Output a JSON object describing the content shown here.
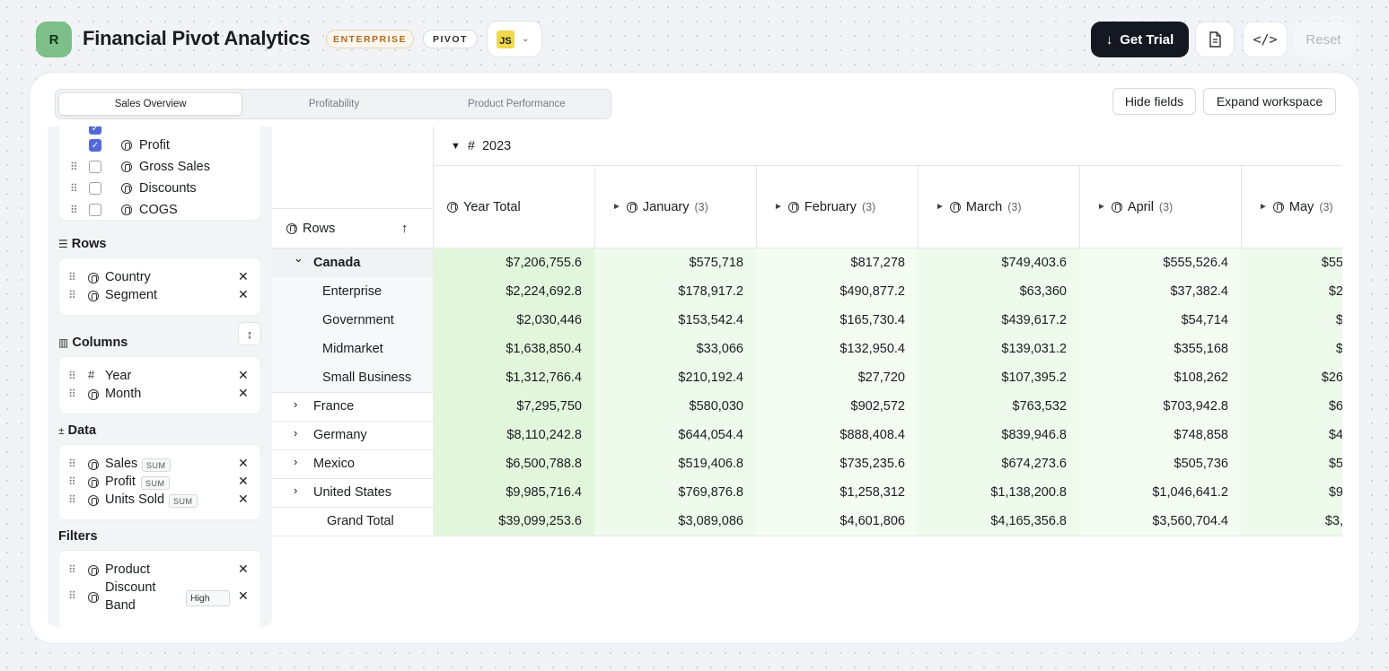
{
  "header": {
    "avatar_letter": "R",
    "title": "Financial Pivot Analytics",
    "badge_enterprise": "ENTERPRISE",
    "badge_pivot": "PIVOT",
    "language": "JS",
    "trial_label": "Get Trial",
    "reset_label": "Reset",
    "icons": [
      "download-icon",
      "document-icon",
      "code-icon",
      "chevron-down-icon"
    ]
  },
  "tabs": [
    {
      "label": "Sales Overview",
      "active": true
    },
    {
      "label": "Profitability",
      "active": false
    },
    {
      "label": "Product Performance",
      "active": false
    }
  ],
  "actions": {
    "hide_fields": "Hide fields",
    "expand_workspace": "Expand workspace"
  },
  "sidebar": {
    "fields": [
      {
        "label": "Profit",
        "checked": true
      },
      {
        "label": "Gross Sales",
        "checked": false
      },
      {
        "label": "Discounts",
        "checked": false
      },
      {
        "label": "COGS",
        "checked": false
      }
    ],
    "rows_title": "Rows",
    "rows": [
      "Country",
      "Segment"
    ],
    "columns_title": "Columns",
    "columns": [
      "Year",
      "Month"
    ],
    "data_title": "Data",
    "data": [
      {
        "label": "Sales",
        "agg": "SUM"
      },
      {
        "label": "Profit",
        "agg": "SUM"
      },
      {
        "label": "Units Sold",
        "agg": "SUM"
      }
    ],
    "filters_title": "Filters",
    "filters": [
      {
        "label": "Product"
      },
      {
        "label": "Discount Band",
        "line1": "Discount",
        "line2": "Band",
        "value": "High"
      }
    ]
  },
  "grid": {
    "year": "2023",
    "rows_header": "Rows",
    "sort_arrow": "↑",
    "columns": [
      {
        "label": "Year Total",
        "count": ""
      },
      {
        "label": "January",
        "count": "(3)"
      },
      {
        "label": "February",
        "count": "(3)"
      },
      {
        "label": "March",
        "count": "(3)"
      },
      {
        "label": "April",
        "count": "(3)"
      },
      {
        "label": "May",
        "count": "(3)"
      }
    ],
    "rows": [
      {
        "label": "Canada",
        "values": [
          "$7,206,755.6",
          "$575,718",
          "$817,278",
          "$749,403.6",
          "$555,526.4",
          "$55"
        ]
      },
      {
        "label": "Enterprise",
        "values": [
          "$2,224,692.8",
          "$178,917.2",
          "$490,877.2",
          "$63,360",
          "$37,382.4",
          "$2"
        ]
      },
      {
        "label": "Government",
        "values": [
          "$2,030,446",
          "$153,542.4",
          "$165,730.4",
          "$439,617.2",
          "$54,714",
          "$"
        ]
      },
      {
        "label": "Midmarket",
        "values": [
          "$1,638,850.4",
          "$33,066",
          "$132,950.4",
          "$139,031.2",
          "$355,168",
          "$"
        ]
      },
      {
        "label": "Small Business",
        "values": [
          "$1,312,766.4",
          "$210,192.4",
          "$27,720",
          "$107,395.2",
          "$108,262",
          "$26"
        ]
      },
      {
        "label": "France",
        "values": [
          "$7,295,750",
          "$580,030",
          "$902,572",
          "$763,532",
          "$703,942.8",
          "$6"
        ]
      },
      {
        "label": "Germany",
        "values": [
          "$8,110,242.8",
          "$644,054.4",
          "$888,408.4",
          "$839,946.8",
          "$748,858",
          "$4"
        ]
      },
      {
        "label": "Mexico",
        "values": [
          "$6,500,788.8",
          "$519,406.8",
          "$735,235.6",
          "$674,273.6",
          "$505,736",
          "$5"
        ]
      },
      {
        "label": "United States",
        "values": [
          "$9,985,716.4",
          "$769,876.8",
          "$1,258,312",
          "$1,138,200.8",
          "$1,046,641.2",
          "$9"
        ]
      },
      {
        "label": "Grand Total",
        "values": [
          "$39,099,253.6",
          "$3,089,086",
          "$4,601,806",
          "$4,165,356.8",
          "$3,560,704.4",
          "$3,"
        ]
      }
    ]
  }
}
